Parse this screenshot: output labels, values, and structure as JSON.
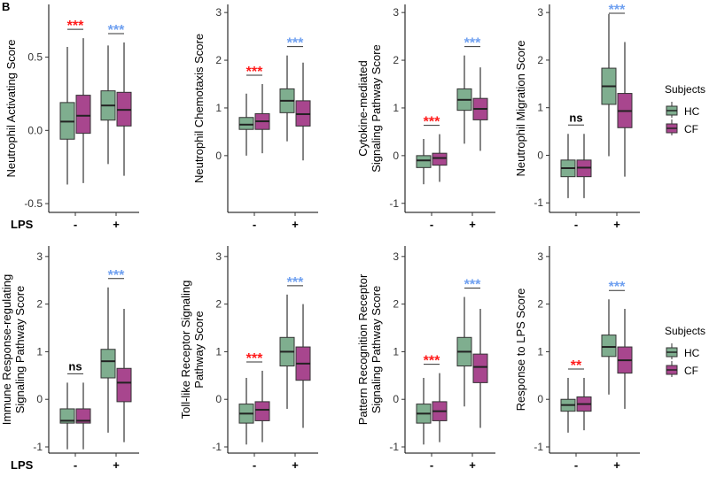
{
  "panel_letter": "B",
  "colors": {
    "HC": "#7fae8f",
    "CF": "#a8468e",
    "sig_red": "#ff1a1a",
    "sig_blue": "#6fa0f0"
  },
  "legend": {
    "title": "Subjects",
    "items": [
      "HC",
      "CF"
    ]
  },
  "x_title": "LPS",
  "chart_data": [
    {
      "type": "box",
      "ylabel": [
        "Neutrophil Activating Score"
      ],
      "categories": [
        "-",
        "+"
      ],
      "ylim": [
        -0.56,
        0.86
      ],
      "yticks": [
        -0.5,
        0.0,
        0.5
      ],
      "tick_labels": [
        "-0.5",
        "0.0",
        "0.5"
      ],
      "series": [
        {
          "name": "HC",
          "boxes": [
            [
              -0.37,
              -0.06,
              0.06,
              0.19,
              0.57
            ],
            [
              -0.23,
              0.07,
              0.17,
              0.27,
              0.58
            ]
          ]
        },
        {
          "name": "CF",
          "boxes": [
            [
              -0.36,
              -0.02,
              0.1,
              0.24,
              0.63
            ],
            [
              -0.31,
              0.03,
              0.14,
              0.26,
              0.6
            ]
          ]
        }
      ],
      "significance": [
        {
          "label": "***",
          "color": "red"
        },
        {
          "label": "***",
          "color": "blue"
        }
      ]
    },
    {
      "type": "box",
      "ylabel": [
        "Neutrophil Chemotaxis Score"
      ],
      "categories": [
        "-",
        "+"
      ],
      "ylim": [
        -1.19,
        3.17
      ],
      "yticks": [
        0,
        1,
        2,
        3
      ],
      "tick_labels": [
        "0",
        "1",
        "2",
        "3"
      ],
      "series": [
        {
          "name": "HC",
          "boxes": [
            [
              0.0,
              0.55,
              0.65,
              0.8,
              1.3
            ],
            [
              0.3,
              0.9,
              1.15,
              1.4,
              2.1
            ]
          ]
        },
        {
          "name": "CF",
          "boxes": [
            [
              0.05,
              0.55,
              0.72,
              0.88,
              1.5
            ],
            [
              -0.1,
              0.62,
              0.87,
              1.15,
              1.95
            ]
          ]
        }
      ],
      "significance": [
        {
          "label": "***",
          "color": "red"
        },
        {
          "label": "***",
          "color": "blue"
        }
      ]
    },
    {
      "type": "box",
      "ylabel": [
        "Cytokine-mediated",
        "Signaling Pathway Score"
      ],
      "categories": [
        "-",
        "+"
      ],
      "ylim": [
        -1.19,
        3.17
      ],
      "yticks": [
        -1,
        0,
        1,
        2,
        3
      ],
      "tick_labels": [
        "-1",
        "0",
        "1",
        "2",
        "3"
      ],
      "series": [
        {
          "name": "HC",
          "boxes": [
            [
              -0.6,
              -0.25,
              -0.1,
              0.0,
              0.35
            ],
            [
              0.25,
              0.95,
              1.17,
              1.4,
              2.1
            ]
          ]
        },
        {
          "name": "CF",
          "boxes": [
            [
              -0.55,
              -0.2,
              -0.05,
              0.05,
              0.45
            ],
            [
              0.1,
              0.75,
              0.98,
              1.2,
              1.85
            ]
          ]
        }
      ],
      "significance": [
        {
          "label": "***",
          "color": "red"
        },
        {
          "label": "***",
          "color": "blue"
        }
      ]
    },
    {
      "type": "box",
      "ylabel": [
        "Neutrophil Migration Score"
      ],
      "categories": [
        "-",
        "+"
      ],
      "ylim": [
        -1.2,
        3.17
      ],
      "yticks": [
        -1,
        0,
        1,
        2,
        3
      ],
      "tick_labels": [
        "-1",
        "0",
        "1",
        "2",
        "3"
      ],
      "series": [
        {
          "name": "HC",
          "boxes": [
            [
              -0.9,
              -0.45,
              -0.27,
              -0.1,
              0.45
            ],
            [
              -0.02,
              1.07,
              1.45,
              1.83,
              2.97
            ]
          ]
        },
        {
          "name": "CF",
          "boxes": [
            [
              -0.9,
              -0.45,
              -0.26,
              -0.1,
              0.45
            ],
            [
              -0.45,
              0.58,
              0.93,
              1.3,
              2.38
            ]
          ]
        }
      ],
      "significance": [
        {
          "label": "ns",
          "color": "black"
        },
        {
          "label": "***",
          "color": "blue"
        }
      ]
    },
    {
      "type": "box",
      "ylabel": [
        "Immune Response-regulating",
        "Signaling Pathway Score"
      ],
      "categories": [
        "-",
        "+"
      ],
      "ylim": [
        -1.13,
        3.22
      ],
      "yticks": [
        -1,
        0,
        1,
        2,
        3
      ],
      "tick_labels": [
        "-1",
        "0",
        "1",
        "2",
        "3"
      ],
      "series": [
        {
          "name": "HC",
          "boxes": [
            [
              -1.05,
              -0.5,
              -0.45,
              -0.2,
              0.35
            ],
            [
              -0.7,
              0.45,
              0.8,
              1.05,
              2.35
            ]
          ]
        },
        {
          "name": "CF",
          "boxes": [
            [
              -1.05,
              -0.5,
              -0.45,
              -0.2,
              0.35
            ],
            [
              -0.9,
              -0.05,
              0.35,
              0.65,
              1.9
            ]
          ]
        }
      ],
      "significance": [
        {
          "label": "ns",
          "color": "black"
        },
        {
          "label": "***",
          "color": "blue"
        }
      ]
    },
    {
      "type": "box",
      "ylabel": [
        "Toll-like Receptor Signaling",
        "Pathway Score"
      ],
      "categories": [
        "-",
        "+"
      ],
      "ylim": [
        -1.13,
        3.22
      ],
      "yticks": [
        -1,
        0,
        1,
        2,
        3
      ],
      "tick_labels": [
        "-1",
        "0",
        "1",
        "2",
        "3"
      ],
      "series": [
        {
          "name": "HC",
          "boxes": [
            [
              -0.95,
              -0.5,
              -0.3,
              -0.1,
              0.45
            ],
            [
              -0.2,
              0.7,
              1.0,
              1.3,
              2.2
            ]
          ]
        },
        {
          "name": "CF",
          "boxes": [
            [
              -0.9,
              -0.45,
              -0.22,
              -0.05,
              0.6
            ],
            [
              -0.6,
              0.4,
              0.75,
              1.1,
              2.0
            ]
          ]
        }
      ],
      "significance": [
        {
          "label": "***",
          "color": "red"
        },
        {
          "label": "***",
          "color": "blue"
        }
      ]
    },
    {
      "type": "box",
      "ylabel": [
        "Pattern Recognition Receptor",
        "Signaling Pathway Score"
      ],
      "categories": [
        "-",
        "+"
      ],
      "ylim": [
        -1.13,
        3.22
      ],
      "yticks": [
        -1,
        0,
        1,
        2,
        3
      ],
      "tick_labels": [
        "-1",
        "0",
        "1",
        "2",
        "3"
      ],
      "series": [
        {
          "name": "HC",
          "boxes": [
            [
              -0.95,
              -0.5,
              -0.3,
              -0.1,
              0.45
            ],
            [
              -0.15,
              0.7,
              1.0,
              1.3,
              2.15
            ]
          ]
        },
        {
          "name": "CF",
          "boxes": [
            [
              -0.9,
              -0.45,
              -0.25,
              -0.05,
              0.55
            ],
            [
              -0.6,
              0.35,
              0.68,
              0.95,
              1.9
            ]
          ]
        }
      ],
      "significance": [
        {
          "label": "***",
          "color": "red"
        },
        {
          "label": "***",
          "color": "blue"
        }
      ]
    },
    {
      "type": "box",
      "ylabel": [
        "Response to LPS Score"
      ],
      "categories": [
        "-",
        "+"
      ],
      "ylim": [
        -1.13,
        3.22
      ],
      "yticks": [
        -1,
        0,
        1,
        2,
        3
      ],
      "tick_labels": [
        "-1",
        "0",
        "1",
        "2",
        "3"
      ],
      "series": [
        {
          "name": "HC",
          "boxes": [
            [
              -0.7,
              -0.25,
              -0.12,
              0.0,
              0.45
            ],
            [
              0.1,
              0.9,
              1.1,
              1.35,
              2.1
            ]
          ]
        },
        {
          "name": "CF",
          "boxes": [
            [
              -0.65,
              -0.25,
              -0.1,
              0.05,
              0.45
            ],
            [
              -0.2,
              0.55,
              0.82,
              1.1,
              1.9
            ]
          ]
        }
      ],
      "significance": [
        {
          "label": "**",
          "color": "red"
        },
        {
          "label": "***",
          "color": "blue"
        }
      ]
    }
  ]
}
